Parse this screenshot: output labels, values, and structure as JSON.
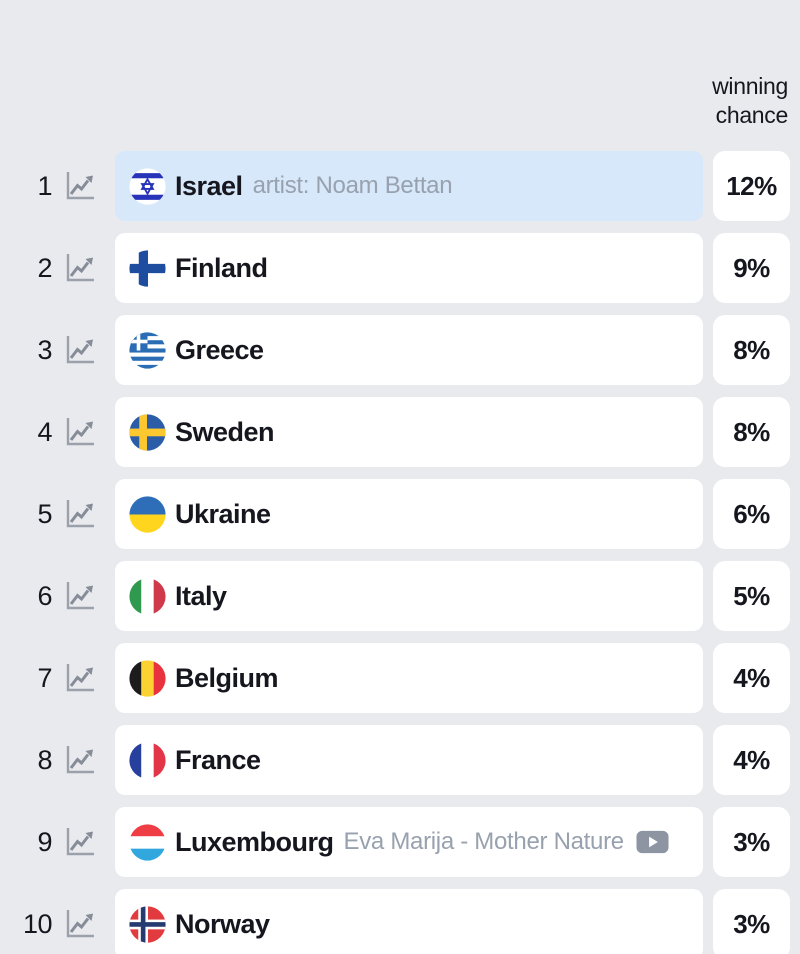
{
  "header": {
    "label": "winning chance"
  },
  "colors": {
    "page_bg": "#e9eaee",
    "card_bg": "#ffffff",
    "highlight_bg": "#d7e8fa",
    "text_dark": "#16161f",
    "text_gray": "#98a1ae",
    "icon_gray": "#8d95a3"
  },
  "table": {
    "rows": [
      {
        "rank": "1",
        "country": "Israel",
        "flag": "israel",
        "detail": "artist: Noam Bettan",
        "has_video": false,
        "chance": "12%",
        "highlighted": true
      },
      {
        "rank": "2",
        "country": "Finland",
        "flag": "finland",
        "detail": "",
        "has_video": false,
        "chance": "9%",
        "highlighted": false
      },
      {
        "rank": "3",
        "country": "Greece",
        "flag": "greece",
        "detail": "",
        "has_video": false,
        "chance": "8%",
        "highlighted": false
      },
      {
        "rank": "4",
        "country": "Sweden",
        "flag": "sweden",
        "detail": "",
        "has_video": false,
        "chance": "8%",
        "highlighted": false
      },
      {
        "rank": "5",
        "country": "Ukraine",
        "flag": "ukraine",
        "detail": "",
        "has_video": false,
        "chance": "6%",
        "highlighted": false
      },
      {
        "rank": "6",
        "country": "Italy",
        "flag": "italy",
        "detail": "",
        "has_video": false,
        "chance": "5%",
        "highlighted": false
      },
      {
        "rank": "7",
        "country": "Belgium",
        "flag": "belgium",
        "detail": "",
        "has_video": false,
        "chance": "4%",
        "highlighted": false
      },
      {
        "rank": "8",
        "country": "France",
        "flag": "france",
        "detail": "",
        "has_video": false,
        "chance": "4%",
        "highlighted": false
      },
      {
        "rank": "9",
        "country": "Luxembourg",
        "flag": "luxembourg",
        "detail": "Eva Marija - Mother Nature",
        "has_video": true,
        "chance": "3%",
        "highlighted": false
      },
      {
        "rank": "10",
        "country": "Norway",
        "flag": "norway",
        "detail": "",
        "has_video": false,
        "chance": "3%",
        "highlighted": false
      }
    ]
  }
}
